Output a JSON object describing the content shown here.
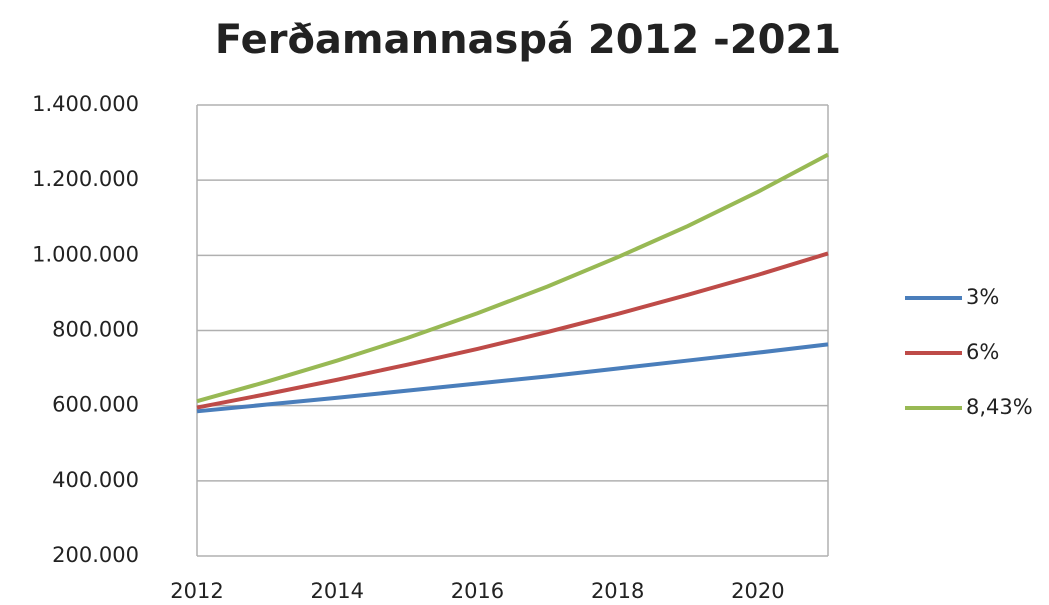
{
  "chart_data": {
    "type": "line",
    "title": "Ferðamannaspá 2012 -2021",
    "x": [
      2012,
      2013,
      2014,
      2015,
      2016,
      2017,
      2018,
      2019,
      2020,
      2021
    ],
    "series": [
      {
        "name": "3%",
        "color": "#4a7ebb",
        "values": [
          585000,
          603000,
          621000,
          640000,
          659000,
          678000,
          699000,
          720000,
          741000,
          763000
        ]
      },
      {
        "name": "6%",
        "color": "#be4b48",
        "values": [
          595000,
          631000,
          669000,
          709000,
          751000,
          796000,
          844000,
          895000,
          948000,
          1005000
        ]
      },
      {
        "name": "8,43%",
        "color": "#98b954",
        "values": [
          612000,
          664000,
          720000,
          780000,
          846000,
          917000,
          995000,
          1078000,
          1169000,
          1268000
        ]
      }
    ],
    "xlim": [
      2012,
      2021
    ],
    "xticks": [
      2012,
      2014,
      2016,
      2018,
      2020
    ],
    "ylim": [
      200000,
      1400000
    ],
    "yticks": [
      {
        "value": 200000,
        "label": "200.000"
      },
      {
        "value": 400000,
        "label": "400.000"
      },
      {
        "value": 600000,
        "label": "600.000"
      },
      {
        "value": 800000,
        "label": "800.000"
      },
      {
        "value": 1000000,
        "label": "1.000.000"
      },
      {
        "value": 1200000,
        "label": "1.200.000"
      },
      {
        "value": 1400000,
        "label": "1.400.000"
      }
    ],
    "grid": true,
    "legend": "right"
  }
}
